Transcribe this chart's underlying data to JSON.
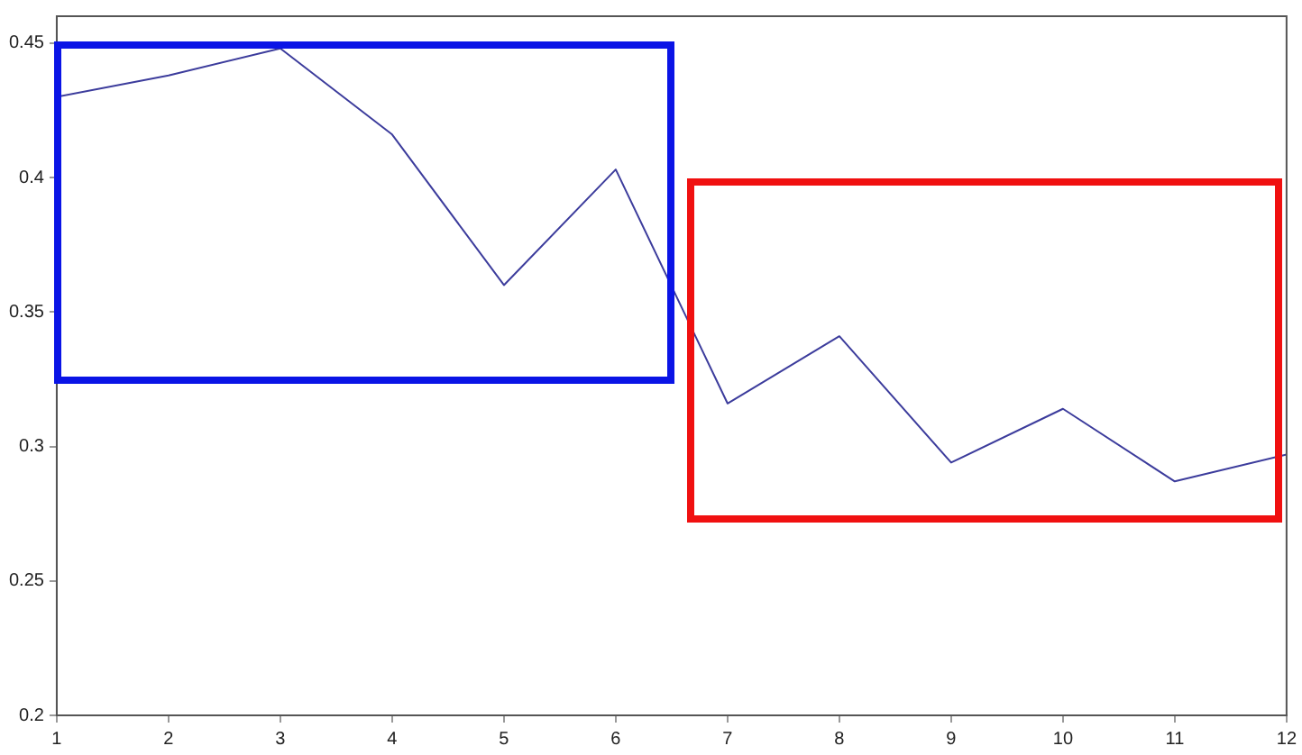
{
  "chart_data": {
    "type": "line",
    "x": [
      1,
      2,
      3,
      4,
      5,
      6,
      7,
      8,
      9,
      10,
      11,
      12
    ],
    "series": [
      {
        "color": "#3c3c9c",
        "values": [
          0.43,
          0.438,
          0.448,
          0.416,
          0.36,
          0.403,
          0.316,
          0.341,
          0.294,
          0.314,
          0.287,
          0.297
        ]
      }
    ],
    "xlim": [
      1,
      12
    ],
    "xticks": [
      1,
      2,
      3,
      4,
      5,
      6,
      7,
      8,
      9,
      10,
      11,
      12
    ],
    "ylim": [
      0.2,
      0.46
    ],
    "yticks": [
      0.2,
      0.25,
      0.3,
      0.35,
      0.4,
      0.45
    ],
    "grid": false,
    "legend": false,
    "marker": "none",
    "line_style": "solid"
  }
}
